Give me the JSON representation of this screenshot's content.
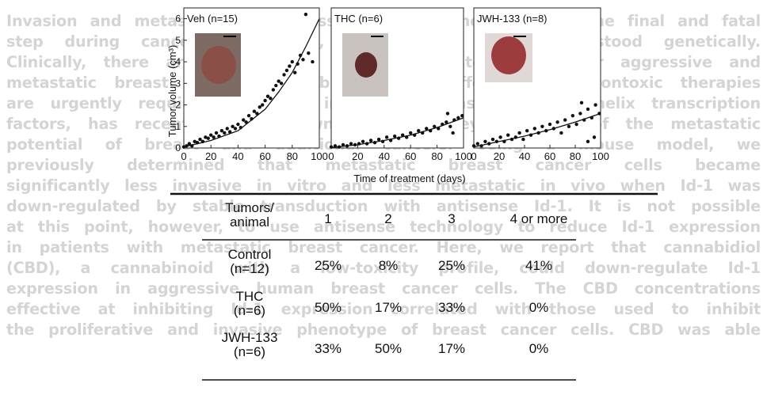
{
  "background_text": [
    "Invasion and metastasis of aggressive breast cancer cells is the final and fatal",
    "step during cancer progression, and is the least understood genetically.",
    "Clinically, there are still limited therapeutic interventions for aggressive and",
    "metastatic breast cancers available. Clearly, effective and nontoxic therapies",
    "are urgently required. Id-1, an inhibitor of basic helix-loop-helix transcription",
    "factors, has recently been shown to be a key regulator of the metastatic",
    "potential of breast and additional cancers. Using a mouse model, we",
    "previously determined that metastatic breast cancer cells became",
    "significantly less invasive in vitro and less metastatic in vivo when Id-1 was",
    "down-regulated by stable transduction with antisense Id-1. It is not possible",
    "at this point, however, to use antisense technology to reduce Id-1 expression",
    "in patients with metastatic breast cancer. Here, we report that cannabidiol",
    "(CBD), a cannabinoid with a low-toxicity profile, could down-regulate Id-1",
    "expression in aggressive human breast cancer cells. The CBD concentrations",
    "effective at inhibiting Id-1 expression correlated with those used to inhibit",
    "the proliferative and invasive phenotype of breast cancer cells. CBD was able"
  ],
  "figure": {
    "ylabel": "Tumor volume (cm³)",
    "xlabel": "Time of treatment (days)"
  },
  "chart_data": [
    {
      "type": "scatter",
      "title": "Veh (n=15)",
      "xlim": [
        0,
        100
      ],
      "ylim": [
        0,
        6.5
      ],
      "xticks": [
        0,
        20,
        40,
        60,
        80,
        100
      ],
      "yticks": [
        0,
        1,
        2,
        3,
        4,
        5,
        6
      ],
      "points": [
        [
          0,
          0.05
        ],
        [
          2,
          0.1
        ],
        [
          4,
          0.2
        ],
        [
          6,
          0.1
        ],
        [
          8,
          0.3
        ],
        [
          10,
          0.25
        ],
        [
          12,
          0.4
        ],
        [
          14,
          0.3
        ],
        [
          16,
          0.5
        ],
        [
          18,
          0.45
        ],
        [
          20,
          0.6
        ],
        [
          22,
          0.5
        ],
        [
          24,
          0.7
        ],
        [
          26,
          0.55
        ],
        [
          28,
          0.8
        ],
        [
          30,
          0.7
        ],
        [
          32,
          0.9
        ],
        [
          34,
          0.75
        ],
        [
          36,
          1.0
        ],
        [
          38,
          0.9
        ],
        [
          40,
          1.1
        ],
        [
          42,
          0.95
        ],
        [
          44,
          1.3
        ],
        [
          46,
          1.2
        ],
        [
          48,
          1.5
        ],
        [
          50,
          1.35
        ],
        [
          52,
          1.7
        ],
        [
          54,
          1.6
        ],
        [
          56,
          1.9
        ],
        [
          58,
          2.0
        ],
        [
          60,
          2.2
        ],
        [
          62,
          2.4
        ],
        [
          64,
          2.3
        ],
        [
          66,
          2.7
        ],
        [
          68,
          2.9
        ],
        [
          70,
          3.1
        ],
        [
          72,
          3.0
        ],
        [
          74,
          3.4
        ],
        [
          76,
          3.6
        ],
        [
          78,
          3.8
        ],
        [
          80,
          4.0
        ],
        [
          82,
          3.5
        ],
        [
          84,
          3.9
        ],
        [
          86,
          4.3
        ],
        [
          88,
          4.1
        ],
        [
          90,
          6.2
        ],
        [
          92,
          4.4
        ],
        [
          95,
          4.0
        ]
      ],
      "fit": [
        [
          0,
          0.05
        ],
        [
          20,
          0.35
        ],
        [
          40,
          0.8
        ],
        [
          60,
          1.8
        ],
        [
          70,
          2.6
        ],
        [
          80,
          3.5
        ],
        [
          90,
          4.7
        ],
        [
          100,
          6.0
        ]
      ]
    },
    {
      "type": "scatter",
      "title": "THC (n=6)",
      "xlim": [
        0,
        100
      ],
      "ylim": [
        0,
        6.5
      ],
      "xticks": [
        0,
        20,
        40,
        60,
        80,
        100
      ],
      "points": [
        [
          0,
          0.05
        ],
        [
          3,
          0.1
        ],
        [
          6,
          0.05
        ],
        [
          9,
          0.15
        ],
        [
          12,
          0.1
        ],
        [
          15,
          0.2
        ],
        [
          18,
          0.15
        ],
        [
          21,
          0.2
        ],
        [
          24,
          0.3
        ],
        [
          27,
          0.2
        ],
        [
          30,
          0.35
        ],
        [
          33,
          0.25
        ],
        [
          36,
          0.4
        ],
        [
          39,
          0.3
        ],
        [
          42,
          0.5
        ],
        [
          45,
          0.35
        ],
        [
          48,
          0.55
        ],
        [
          51,
          0.45
        ],
        [
          54,
          0.6
        ],
        [
          57,
          0.5
        ],
        [
          60,
          0.7
        ],
        [
          63,
          0.6
        ],
        [
          66,
          0.8
        ],
        [
          69,
          0.7
        ],
        [
          72,
          0.9
        ],
        [
          75,
          0.8
        ],
        [
          78,
          1.0
        ],
        [
          81,
          0.9
        ],
        [
          84,
          1.1
        ],
        [
          87,
          1.2
        ],
        [
          90,
          1.0
        ],
        [
          93,
          1.3
        ],
        [
          96,
          1.4
        ],
        [
          99,
          1.5
        ],
        [
          88,
          1.6
        ],
        [
          92,
          0.7
        ]
      ],
      "fit": [
        [
          0,
          0.02
        ],
        [
          20,
          0.15
        ],
        [
          40,
          0.35
        ],
        [
          60,
          0.6
        ],
        [
          80,
          0.95
        ],
        [
          100,
          1.4
        ]
      ]
    },
    {
      "type": "scatter",
      "title": "JWH-133 (n=8)",
      "xlim": [
        0,
        100
      ],
      "ylim": [
        0,
        6.5
      ],
      "xticks": [
        0,
        20,
        40,
        60,
        80,
        100
      ],
      "points": [
        [
          0,
          0.1
        ],
        [
          3,
          0.2
        ],
        [
          6,
          0.1
        ],
        [
          9,
          0.3
        ],
        [
          12,
          0.2
        ],
        [
          15,
          0.4
        ],
        [
          18,
          0.3
        ],
        [
          21,
          0.5
        ],
        [
          24,
          0.3
        ],
        [
          27,
          0.6
        ],
        [
          30,
          0.4
        ],
        [
          33,
          0.5
        ],
        [
          36,
          0.7
        ],
        [
          39,
          0.4
        ],
        [
          42,
          0.8
        ],
        [
          45,
          0.6
        ],
        [
          48,
          0.9
        ],
        [
          51,
          0.7
        ],
        [
          54,
          1.0
        ],
        [
          57,
          0.8
        ],
        [
          60,
          1.1
        ],
        [
          63,
          0.9
        ],
        [
          66,
          1.2
        ],
        [
          69,
          0.7
        ],
        [
          72,
          1.3
        ],
        [
          75,
          1.0
        ],
        [
          78,
          1.5
        ],
        [
          81,
          1.1
        ],
        [
          84,
          1.6
        ],
        [
          87,
          1.3
        ],
        [
          90,
          1.8
        ],
        [
          93,
          1.4
        ],
        [
          96,
          2.0
        ],
        [
          99,
          1.6
        ],
        [
          85,
          2.1
        ],
        [
          95,
          0.5
        ],
        [
          90,
          0.3
        ]
      ],
      "fit": [
        [
          0,
          0.05
        ],
        [
          20,
          0.3
        ],
        [
          40,
          0.55
        ],
        [
          60,
          0.85
        ],
        [
          80,
          1.2
        ],
        [
          100,
          1.6
        ]
      ]
    }
  ],
  "table": {
    "headers": [
      "Tumors/\nanimal",
      "1",
      "2",
      "3",
      "4 or more"
    ],
    "rows": [
      [
        "Control\n(n=12)",
        "25%",
        "8%",
        "25%",
        "41%"
      ],
      [
        "THC\n(n=6)",
        "50%",
        "17%",
        "33%",
        "0%"
      ],
      [
        "JWH-133\n(n=6)",
        "33%",
        "50%",
        "17%",
        "0%"
      ]
    ]
  }
}
